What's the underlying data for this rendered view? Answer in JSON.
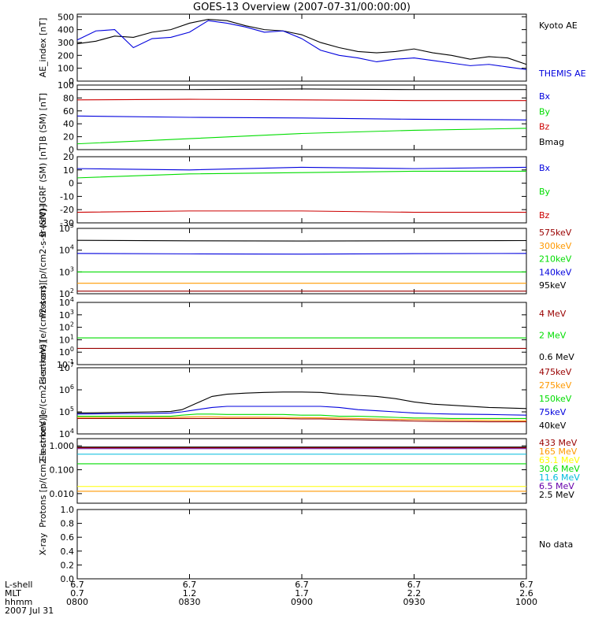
{
  "title": "GOES-13 Overview (2007-07-31/00:00:00)",
  "colors": {
    "black": "#000000",
    "blue": "#0000dd",
    "red": "#cc0000",
    "green": "#00dd00",
    "orange": "#ff9900",
    "cyan": "#00bbdd",
    "purple": "#6600aa",
    "darkred": "#990000",
    "yellow": "#ffff00"
  },
  "footer": {
    "row_labels": [
      "L-shell",
      "MLT",
      "hhmm",
      "2007 Jul 31"
    ],
    "lshell": [
      "6.7",
      "6.7",
      "6.7",
      "6.7",
      "6.7"
    ],
    "mlt": [
      "0.7",
      "1.2",
      "1.7",
      "2.2",
      "2.6"
    ],
    "hhmm": [
      "0800",
      "0830",
      "0900",
      "0930",
      "1000"
    ]
  },
  "chart_data": [
    {
      "type": "line",
      "id": "ae",
      "ylabel": "AE_index [nT]",
      "scale": "linear",
      "ylim": [
        0,
        520
      ],
      "ticks": [
        "0",
        "100",
        "200",
        "300",
        "400",
        "500"
      ],
      "tick_values": [
        0,
        100,
        200,
        300,
        400,
        500
      ],
      "x": [
        0,
        5,
        10,
        15,
        20,
        25,
        30,
        35,
        40,
        45,
        50,
        55,
        60,
        65,
        70,
        75,
        80,
        85,
        90,
        95,
        100,
        105,
        110,
        115,
        120
      ],
      "series": [
        {
          "name": "Kyoto AE",
          "color": "black",
          "values": [
            290,
            310,
            350,
            340,
            380,
            400,
            450,
            480,
            470,
            430,
            400,
            390,
            360,
            300,
            260,
            230,
            220,
            230,
            250,
            220,
            200,
            170,
            190,
            180,
            130
          ]
        },
        {
          "name": "THEMIS AE",
          "color": "blue",
          "values": [
            320,
            390,
            400,
            260,
            330,
            340,
            380,
            470,
            450,
            420,
            380,
            390,
            330,
            240,
            200,
            180,
            150,
            170,
            180,
            160,
            140,
            120,
            130,
            110,
            90
          ]
        }
      ],
      "legend": [
        {
          "label": "Kyoto AE",
          "color": "black"
        },
        {
          "label": "THEMIS AE",
          "color": "blue"
        }
      ]
    },
    {
      "type": "line",
      "id": "bsm",
      "ylabel": "B (SM) [nT]",
      "scale": "linear",
      "ylim": [
        0,
        100
      ],
      "ticks": [
        "0",
        "20",
        "40",
        "60",
        "80",
        "100"
      ],
      "tick_values": [
        0,
        20,
        40,
        60,
        80,
        100
      ],
      "x": [
        0,
        30,
        60,
        90,
        120
      ],
      "series": [
        {
          "name": "Bmag",
          "color": "black",
          "values": [
            93,
            93,
            94,
            93,
            93
          ]
        },
        {
          "name": "Bz",
          "color": "red",
          "values": [
            77,
            78,
            77,
            76,
            76
          ]
        },
        {
          "name": "Bx",
          "color": "blue",
          "values": [
            52,
            50,
            49,
            47,
            46
          ]
        },
        {
          "name": "By",
          "color": "green",
          "values": [
            9,
            17,
            25,
            30,
            33
          ]
        }
      ],
      "legend": [
        {
          "label": "Bx",
          "color": "blue"
        },
        {
          "label": "By",
          "color": "green"
        },
        {
          "label": "Bz",
          "color": "red"
        },
        {
          "label": "Bmag",
          "color": "black"
        }
      ]
    },
    {
      "type": "line",
      "id": "bigrf",
      "ylabel": "B (SM)-IGRF (SM) [nT]",
      "scale": "linear",
      "ylim": [
        -30,
        20
      ],
      "ticks": [
        "-30",
        "-20",
        "-10",
        "0",
        "10",
        "20"
      ],
      "tick_values": [
        -30,
        -20,
        -10,
        0,
        10,
        20
      ],
      "x": [
        0,
        30,
        60,
        90,
        120
      ],
      "series": [
        {
          "name": "Bx",
          "color": "blue",
          "values": [
            11,
            10,
            12,
            11,
            12
          ]
        },
        {
          "name": "By",
          "color": "green",
          "values": [
            4,
            7,
            8,
            9,
            9
          ]
        },
        {
          "name": "Bz",
          "color": "red",
          "values": [
            -22,
            -21,
            -21,
            -22,
            -22
          ]
        }
      ],
      "legend": [
        {
          "label": "Bx",
          "color": "blue"
        },
        {
          "label": "By",
          "color": "green"
        },
        {
          "label": "Bz",
          "color": "red"
        }
      ]
    },
    {
      "type": "line",
      "id": "protons_low",
      "ylabel": "Protons [p/(cm2-s-sr-keV)]",
      "scale": "log",
      "ylim": [
        2,
        5
      ],
      "ticks": [
        "10^2",
        "10^3",
        "10^4",
        "10^5"
      ],
      "tick_values": [
        2,
        3,
        4,
        5
      ],
      "x": [
        0,
        30,
        60,
        90,
        120
      ],
      "series": [
        {
          "name": "95keV",
          "color": "black",
          "values": [
            4.45,
            4.43,
            4.42,
            4.43,
            4.44
          ]
        },
        {
          "name": "140keV",
          "color": "blue",
          "values": [
            3.85,
            3.83,
            3.82,
            3.84,
            3.85
          ]
        },
        {
          "name": "210keV",
          "color": "green",
          "values": [
            3.0,
            3.0,
            3.0,
            3.0,
            3.0
          ]
        },
        {
          "name": "300keV",
          "color": "orange",
          "values": [
            2.48,
            2.48,
            2.48,
            2.48,
            2.48
          ]
        },
        {
          "name": "575keV",
          "color": "darkred",
          "values": [
            2.12,
            2.12,
            2.12,
            2.12,
            2.12
          ]
        }
      ],
      "legend": [
        {
          "label": "575keV",
          "color": "darkred"
        },
        {
          "label": "300keV",
          "color": "orange"
        },
        {
          "label": "210keV",
          "color": "green"
        },
        {
          "label": "140keV",
          "color": "blue"
        },
        {
          "label": "95keV",
          "color": "black"
        }
      ]
    },
    {
      "type": "line",
      "id": "electrons_mev",
      "ylabel": "Electrons [e/(cm2-s-sr)]",
      "scale": "log",
      "ylim": [
        -1,
        4
      ],
      "ticks": [
        "10^-1",
        "10^0",
        "10^1",
        "10^2",
        "10^3",
        "10^4"
      ],
      "tick_values": [
        -1,
        0,
        1,
        2,
        3,
        4
      ],
      "x": [
        0,
        30,
        60,
        90,
        120
      ],
      "series": [
        {
          "name": "2 MeV",
          "color": "green",
          "values": [
            1.15,
            1.15,
            1.15,
            1.15,
            1.15
          ]
        },
        {
          "name": "4 MeV",
          "color": "darkred",
          "values": [
            0.3,
            0.3,
            0.3,
            0.3,
            0.3
          ]
        }
      ],
      "legend": [
        {
          "label": "4 MeV",
          "color": "darkred"
        },
        {
          "label": "2 MeV",
          "color": "green"
        },
        {
          "label": "0.6 MeV",
          "color": "black"
        }
      ]
    },
    {
      "type": "line",
      "id": "electrons_kev",
      "ylabel": "Electrons [e/(cm2-s-sr-keV)]",
      "scale": "log",
      "ylim": [
        4,
        7
      ],
      "ticks": [
        "10^4",
        "10^5",
        "10^6",
        "10^7"
      ],
      "tick_values": [
        4,
        5,
        6,
        7
      ],
      "x": [
        0,
        10,
        20,
        25,
        28,
        32,
        36,
        40,
        45,
        50,
        55,
        60,
        65,
        70,
        75,
        80,
        85,
        90,
        95,
        100,
        110,
        120
      ],
      "series": [
        {
          "name": "40keV",
          "color": "black",
          "values": [
            4.95,
            4.97,
            5.0,
            5.02,
            5.1,
            5.4,
            5.7,
            5.8,
            5.85,
            5.88,
            5.9,
            5.9,
            5.88,
            5.8,
            5.75,
            5.7,
            5.6,
            5.45,
            5.35,
            5.3,
            5.2,
            5.15
          ]
        },
        {
          "name": "75keV",
          "color": "blue",
          "values": [
            4.9,
            4.92,
            4.93,
            4.95,
            5.0,
            5.1,
            5.2,
            5.25,
            5.25,
            5.25,
            5.25,
            5.25,
            5.25,
            5.2,
            5.1,
            5.05,
            5.0,
            4.95,
            4.92,
            4.9,
            4.88,
            4.85
          ]
        },
        {
          "name": "150keV",
          "color": "green",
          "values": [
            4.8,
            4.8,
            4.8,
            4.8,
            4.85,
            4.9,
            4.9,
            4.88,
            4.88,
            4.88,
            4.88,
            4.85,
            4.85,
            4.8,
            4.8,
            4.78,
            4.75,
            4.72,
            4.72,
            4.7,
            4.7,
            4.7
          ]
        },
        {
          "name": "275keV",
          "color": "orange",
          "values": [
            4.75,
            4.75,
            4.75,
            4.75,
            4.76,
            4.78,
            4.78,
            4.76,
            4.76,
            4.76,
            4.75,
            4.74,
            4.73,
            4.72,
            4.7,
            4.68,
            4.66,
            4.65,
            4.64,
            4.63,
            4.62,
            4.6
          ]
        },
        {
          "name": "475keV",
          "color": "darkred",
          "values": [
            4.7,
            4.7,
            4.7,
            4.7,
            4.7,
            4.7,
            4.7,
            4.7,
            4.7,
            4.7,
            4.7,
            4.68,
            4.68,
            4.66,
            4.64,
            4.62,
            4.6,
            4.58,
            4.57,
            4.56,
            4.55,
            4.55
          ]
        }
      ],
      "legend": [
        {
          "label": "475keV",
          "color": "darkred"
        },
        {
          "label": "275keV",
          "color": "orange"
        },
        {
          "label": "150keV",
          "color": "green"
        },
        {
          "label": "75keV",
          "color": "blue"
        },
        {
          "label": "40keV",
          "color": "black"
        }
      ]
    },
    {
      "type": "line",
      "id": "protons_high",
      "ylabel": "Protons [p/(cm2-s-sr-keV)]",
      "scale": "log",
      "ylim": [
        -2.4,
        0.3
      ],
      "ticks": [
        "0.010",
        "0.100",
        "1.000"
      ],
      "tick_values": [
        -2,
        -1,
        0
      ],
      "x": [
        0,
        120
      ],
      "series": [
        {
          "name": "2.5 MeV",
          "color": "black",
          "values": [
            -0.05,
            -0.05
          ]
        },
        {
          "name": "6.5 MeV",
          "color": "purple",
          "values": [
            -0.12,
            -0.12
          ]
        },
        {
          "name": "11.6 MeV",
          "color": "cyan",
          "values": [
            -0.35,
            -0.35
          ]
        },
        {
          "name": "30.6 MeV",
          "color": "green",
          "values": [
            -0.75,
            -0.75
          ]
        },
        {
          "name": "63.1 MeV",
          "color": "yellow",
          "values": [
            -1.7,
            -1.7
          ]
        },
        {
          "name": "165 MeV",
          "color": "orange",
          "values": [
            -1.9,
            -1.9
          ]
        },
        {
          "name": "433 MeV",
          "color": "darkred",
          "values": [
            -0.08,
            -0.08
          ]
        }
      ],
      "legend": [
        {
          "label": "433 MeV",
          "color": "darkred"
        },
        {
          "label": "165 MeV",
          "color": "orange"
        },
        {
          "label": "63.1 MeV",
          "color": "yellow"
        },
        {
          "label": "30.6 MeV",
          "color": "green"
        },
        {
          "label": "11.6 MeV",
          "color": "cyan"
        },
        {
          "label": "6.5 MeV",
          "color": "purple"
        },
        {
          "label": "2.5 MeV",
          "color": "black"
        }
      ]
    },
    {
      "type": "line",
      "id": "xray",
      "ylabel": "X-ray",
      "scale": "linear",
      "ylim": [
        0,
        1
      ],
      "ticks": [
        "0.0",
        "0.2",
        "0.4",
        "0.6",
        "0.8",
        "1.0"
      ],
      "tick_values": [
        0,
        0.2,
        0.4,
        0.6,
        0.8,
        1.0
      ],
      "x": [],
      "series": [],
      "legend": [],
      "note": "No data"
    }
  ]
}
